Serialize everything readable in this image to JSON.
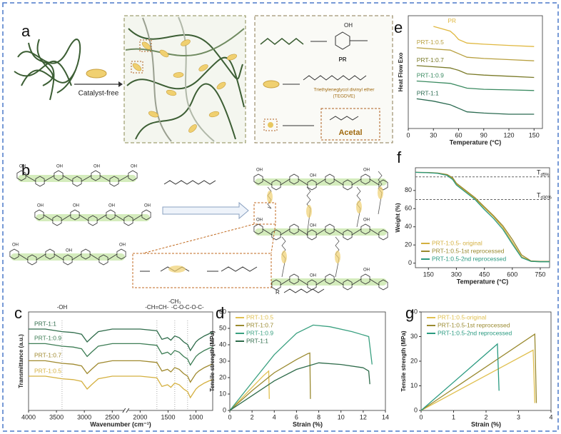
{
  "panel_labels": [
    "a",
    "b",
    "c",
    "d",
    "e",
    "f",
    "g"
  ],
  "diagram": {
    "catalyst": "Catalyst-free",
    "oh": "OH",
    "pr": "PR",
    "tegdve": "Triethyleneglycol divinyl ether",
    "tegdve_abbr": "(TEGDVE)",
    "acetal": "Acetal",
    "r": "R"
  },
  "chart_data": [
    {
      "type": "line",
      "xlabel": "Wavenumber (cm⁻¹)",
      "ylabel": "Transmittance (a.u.)",
      "xlim": [
        4000,
        700
      ],
      "ylim": [
        0,
        11.5
      ],
      "xticks": [
        4000,
        3500,
        3000,
        2500,
        2000,
        1500,
        1000
      ],
      "xbreak": 2250,
      "legend": "inline",
      "annotations": [
        {
          "text": "-OH",
          "x": 3400
        },
        {
          "text": "-CH=CH-",
          "x": 1700
        },
        {
          "text": "-CH₃",
          "x": 1380
        },
        {
          "text": "-C-O-C-O-C-",
          "x": 1150
        }
      ],
      "x": [
        4000,
        3700,
        3400,
        3200,
        3050,
        2950,
        2870,
        2750,
        2500,
        2000,
        1700,
        1610,
        1510,
        1450,
        1380,
        1300,
        1220,
        1150,
        1100,
        1050,
        1000,
        950,
        850,
        750,
        700
      ],
      "series": [
        {
          "name": "PRT-1:1",
          "color": "#2e6b4a",
          "values": [
            9.5,
            9.5,
            9.2,
            9.1,
            8.9,
            8.0,
            8.5,
            9.2,
            9.5,
            9.5,
            9.3,
            8.3,
            8.5,
            8.2,
            8.7,
            8.5,
            8.0,
            7.7,
            7.0,
            7.5,
            8.0,
            8.3,
            8.7,
            9.0,
            9.1
          ]
        },
        {
          "name": "PRT-1:0.9",
          "color": "#3d7d55",
          "values": [
            7.8,
            7.8,
            7.5,
            7.4,
            7.2,
            6.3,
            6.8,
            7.5,
            7.8,
            7.8,
            7.6,
            6.6,
            6.8,
            6.5,
            7.0,
            6.8,
            6.3,
            6.0,
            5.3,
            5.8,
            6.3,
            6.6,
            7.0,
            7.3,
            7.4
          ]
        },
        {
          "name": "PRT-1:0.7",
          "color": "#a08a30",
          "values": [
            5.8,
            5.8,
            5.5,
            5.4,
            5.2,
            4.3,
            4.8,
            5.5,
            5.8,
            5.8,
            5.6,
            4.6,
            4.8,
            4.5,
            5.0,
            4.8,
            4.3,
            4.0,
            3.3,
            3.8,
            4.3,
            4.6,
            5.0,
            5.3,
            5.4
          ]
        },
        {
          "name": "PRT-1:0.5",
          "color": "#d4b040",
          "values": [
            4.0,
            4.0,
            3.7,
            3.6,
            3.4,
            2.5,
            3.0,
            3.7,
            4.0,
            4.0,
            3.8,
            2.8,
            3.0,
            2.7,
            3.2,
            3.0,
            2.5,
            2.2,
            1.5,
            2.0,
            2.5,
            2.8,
            3.2,
            3.5,
            3.6
          ]
        }
      ]
    },
    {
      "type": "line",
      "xlabel": "Strain (%)",
      "ylabel": "Tensile strength (MPa)",
      "xlim": [
        0,
        14
      ],
      "ylim": [
        0,
        60
      ],
      "xticks": [
        0,
        2,
        4,
        6,
        8,
        10,
        12,
        14
      ],
      "yticks": [
        0,
        10,
        20,
        30,
        40,
        50,
        60
      ],
      "legend": "upper left",
      "series": [
        {
          "name": "PRT-1:0.5",
          "color": "#e0c050",
          "x": [
            0,
            1,
            2,
            3,
            3.5,
            3.55
          ],
          "values": [
            0,
            7,
            14,
            21,
            24,
            7
          ]
        },
        {
          "name": "PRT-1:0.7",
          "color": "#9a8a30",
          "x": [
            0,
            2,
            4,
            6,
            7,
            7.2,
            7.25
          ],
          "values": [
            0,
            12,
            23,
            31,
            34.5,
            35,
            7
          ]
        },
        {
          "name": "PRT-1:0.9",
          "color": "#3aa080",
          "x": [
            0,
            2,
            4,
            6,
            7.5,
            9,
            11,
            12.5,
            12.8
          ],
          "values": [
            0,
            17,
            34,
            47,
            52,
            51,
            48,
            45,
            28
          ]
        },
        {
          "name": "PRT-1:1",
          "color": "#2e6b4a",
          "x": [
            0,
            2,
            4,
            6,
            8,
            10,
            12,
            12.5,
            12.6
          ],
          "values": [
            0,
            9,
            18,
            25,
            29,
            28,
            26,
            24,
            16
          ]
        }
      ]
    },
    {
      "type": "line",
      "xlabel": "Temperature (°C)",
      "ylabel": "Heat Flow Exo",
      "xlim": [
        0,
        160
      ],
      "ylim": [
        1,
        10.5
      ],
      "xticks": [
        0,
        30,
        60,
        90,
        120,
        150
      ],
      "legend": "inline",
      "series": [
        {
          "name": "PR",
          "color": "#e0b840",
          "x": [
            30,
            40,
            50,
            55,
            60,
            70,
            90,
            120,
            150
          ],
          "values": [
            9.6,
            9.4,
            9.2,
            8.9,
            8.5,
            8.2,
            8.1,
            8.0,
            7.9
          ]
        },
        {
          "name": "PRT-1:0.5",
          "color": "#b8a040",
          "x": [
            10,
            30,
            50,
            60,
            70,
            90,
            120,
            150
          ],
          "values": [
            7.8,
            7.7,
            7.6,
            7.3,
            7.0,
            6.9,
            6.8,
            6.7
          ]
        },
        {
          "name": "PRT-1:0.7",
          "color": "#7a7a28",
          "x": [
            10,
            30,
            50,
            60,
            70,
            90,
            120,
            150
          ],
          "values": [
            6.3,
            6.2,
            6.1,
            5.9,
            5.6,
            5.5,
            5.4,
            5.3
          ]
        },
        {
          "name": "PRT-1:0.9",
          "color": "#3a8a60",
          "x": [
            10,
            30,
            50,
            60,
            70,
            90,
            120,
            150
          ],
          "values": [
            5.0,
            4.9,
            4.8,
            4.6,
            4.4,
            4.3,
            4.25,
            4.2
          ]
        },
        {
          "name": "PRT-1:1",
          "color": "#2a6a50",
          "x": [
            10,
            30,
            50,
            60,
            70,
            90,
            120,
            150
          ],
          "values": [
            3.5,
            3.3,
            3.0,
            2.7,
            2.4,
            2.3,
            2.2,
            2.2
          ]
        }
      ]
    },
    {
      "type": "line",
      "xlabel": "Temperature (°C)",
      "ylabel": "Weight (%)",
      "xlim": [
        80,
        800
      ],
      "ylim": [
        -5,
        105
      ],
      "xticks": [
        150,
        300,
        450,
        600,
        750
      ],
      "yticks": [
        0,
        20,
        40,
        60,
        80
      ],
      "legend": "lower left",
      "hlines": [
        {
          "value": 95,
          "main": "T",
          "sub": "d5%"
        },
        {
          "value": 70,
          "main": "T",
          "sub": "d30%"
        }
      ],
      "x": [
        80,
        150,
        200,
        250,
        280,
        300,
        350,
        400,
        450,
        500,
        550,
        600,
        650,
        700,
        750,
        800
      ],
      "series": [
        {
          "name": "PRT-1:0.5- original",
          "color": "#d4b040",
          "values": [
            100,
            99.6,
            99,
            97,
            93,
            87,
            79,
            71,
            61,
            51,
            39,
            23,
            7,
            2,
            1.5,
            1.5
          ]
        },
        {
          "name": "PRT-1:0.5-1st reprocessed",
          "color": "#9a8a30",
          "values": [
            100,
            99.7,
            99.2,
            97.5,
            94,
            88,
            80,
            72,
            62,
            52,
            41,
            26,
            9,
            2.5,
            2,
            2
          ]
        },
        {
          "name": "PRT-1:0.5-2nd reprocessed",
          "color": "#2a9a80",
          "values": [
            100,
            99.5,
            98.8,
            96.5,
            92,
            86,
            78,
            70,
            59,
            49,
            37,
            21,
            6,
            2,
            1.5,
            1.5
          ]
        }
      ]
    },
    {
      "type": "line",
      "xlabel": "Strain (%)",
      "ylabel": "Tensile strength (MPa)",
      "xlim": [
        0,
        4
      ],
      "ylim": [
        0,
        40
      ],
      "xticks": [
        0,
        1,
        2,
        3,
        4
      ],
      "yticks": [
        0,
        10,
        20,
        30,
        40
      ],
      "legend": "upper left",
      "series": [
        {
          "name": "PRT-1:0.5-original",
          "color": "#e0c050",
          "x": [
            0,
            3.45,
            3.5
          ],
          "values": [
            0,
            24.5,
            3
          ]
        },
        {
          "name": "PRT-1:0.5-1st reprocessed",
          "color": "#9a8a30",
          "x": [
            0,
            3.5,
            3.55
          ],
          "values": [
            0,
            31,
            3
          ]
        },
        {
          "name": "PRT-1:0.5-2nd reprocessed",
          "color": "#2a9a80",
          "x": [
            0,
            2.35,
            2.4
          ],
          "values": [
            0,
            27,
            8
          ]
        }
      ]
    }
  ]
}
